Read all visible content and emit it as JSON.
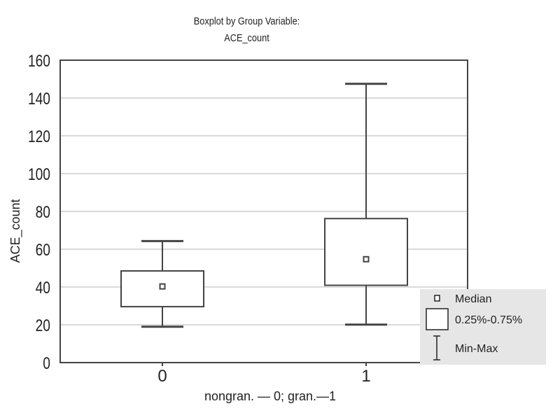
{
  "chart_data": {
    "type": "boxplot",
    "title": "Boxplot by Group Variable:",
    "subtitle": "ACE_count",
    "xlabel": "nongran. — 0; gran.—1",
    "ylabel": "ACE_count",
    "ylim": [
      0,
      160
    ],
    "yticks": [
      0,
      20,
      40,
      60,
      80,
      100,
      120,
      140,
      160
    ],
    "grid": true,
    "categories": [
      "0",
      "1"
    ],
    "groups": [
      {
        "name": "0",
        "min": 19,
        "q1": 29.6,
        "median": 40.3,
        "q3": 48.5,
        "max": 64.3
      },
      {
        "name": "1",
        "min": 20.1,
        "q1": 40.9,
        "median": 54.7,
        "q3": 76.2,
        "max": 147.5
      }
    ],
    "legend": {
      "placement": "bottom-right",
      "items": [
        "Median",
        "0.25%-0.75%",
        "Min-Max"
      ]
    },
    "colors": {
      "line": "#444444",
      "grid": "#d9d9d9",
      "legend_bg": "#e6e6e6"
    }
  }
}
